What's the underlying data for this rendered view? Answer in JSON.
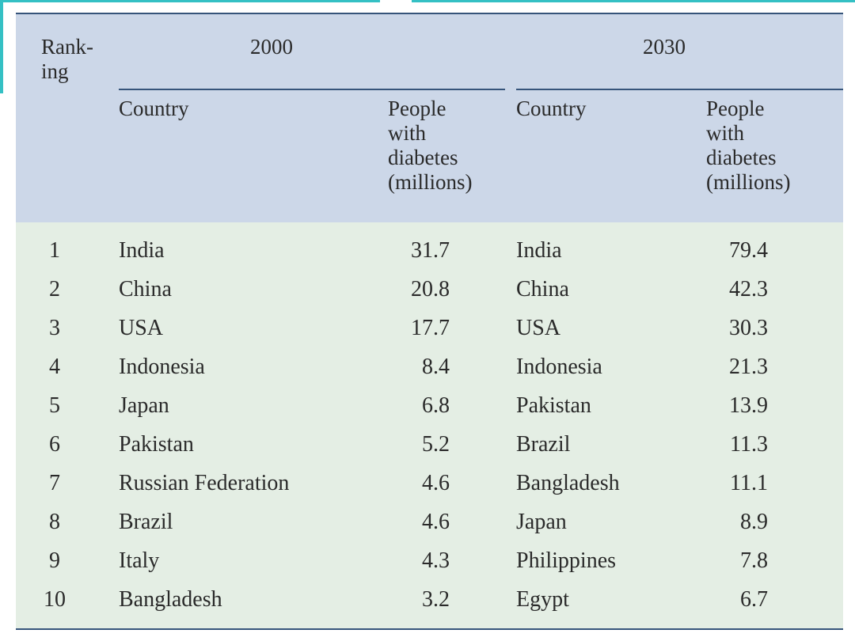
{
  "table": {
    "header": {
      "rank_label": "Rank-\ning",
      "year_2000": "2000",
      "year_2030": "2030",
      "country_2000": "Country",
      "people_2000": "People\nwith\ndiabetes\n(millions)",
      "country_2030": "Country",
      "people_2030": "People\nwith\ndiabetes\n(millions)"
    },
    "rows": [
      {
        "rank": "1",
        "country_2000": "India",
        "value_2000": "31.7",
        "country_2030": "India",
        "value_2030": "79.4"
      },
      {
        "rank": "2",
        "country_2000": "China",
        "value_2000": "20.8",
        "country_2030": "China",
        "value_2030": "42.3"
      },
      {
        "rank": "3",
        "country_2000": "USA",
        "value_2000": "17.7",
        "country_2030": "USA",
        "value_2030": "30.3"
      },
      {
        "rank": "4",
        "country_2000": "Indonesia",
        "value_2000": "8.4",
        "country_2030": "Indonesia",
        "value_2030": "21.3"
      },
      {
        "rank": "5",
        "country_2000": "Japan",
        "value_2000": "6.8",
        "country_2030": "Pakistan",
        "value_2030": "13.9"
      },
      {
        "rank": "6",
        "country_2000": "Pakistan",
        "value_2000": "5.2",
        "country_2030": "Brazil",
        "value_2030": "11.3"
      },
      {
        "rank": "7",
        "country_2000": "Russian Federation",
        "value_2000": "4.6",
        "country_2030": "Bangladesh",
        "value_2030": "11.1"
      },
      {
        "rank": "8",
        "country_2000": "Brazil",
        "value_2000": "4.6",
        "country_2030": "Japan",
        "value_2030": "8.9"
      },
      {
        "rank": "9",
        "country_2000": "Italy",
        "value_2000": "4.3",
        "country_2030": "Philippines",
        "value_2030": "7.8"
      },
      {
        "rank": "10",
        "country_2000": "Bangladesh",
        "value_2000": "3.2",
        "country_2030": "Egypt",
        "value_2030": "6.7"
      }
    ]
  },
  "colors": {
    "header_bg": "#ccd7e8",
    "body_bg": "#e4eee4",
    "rule": "#36547a",
    "accent": "#34c0c4"
  }
}
